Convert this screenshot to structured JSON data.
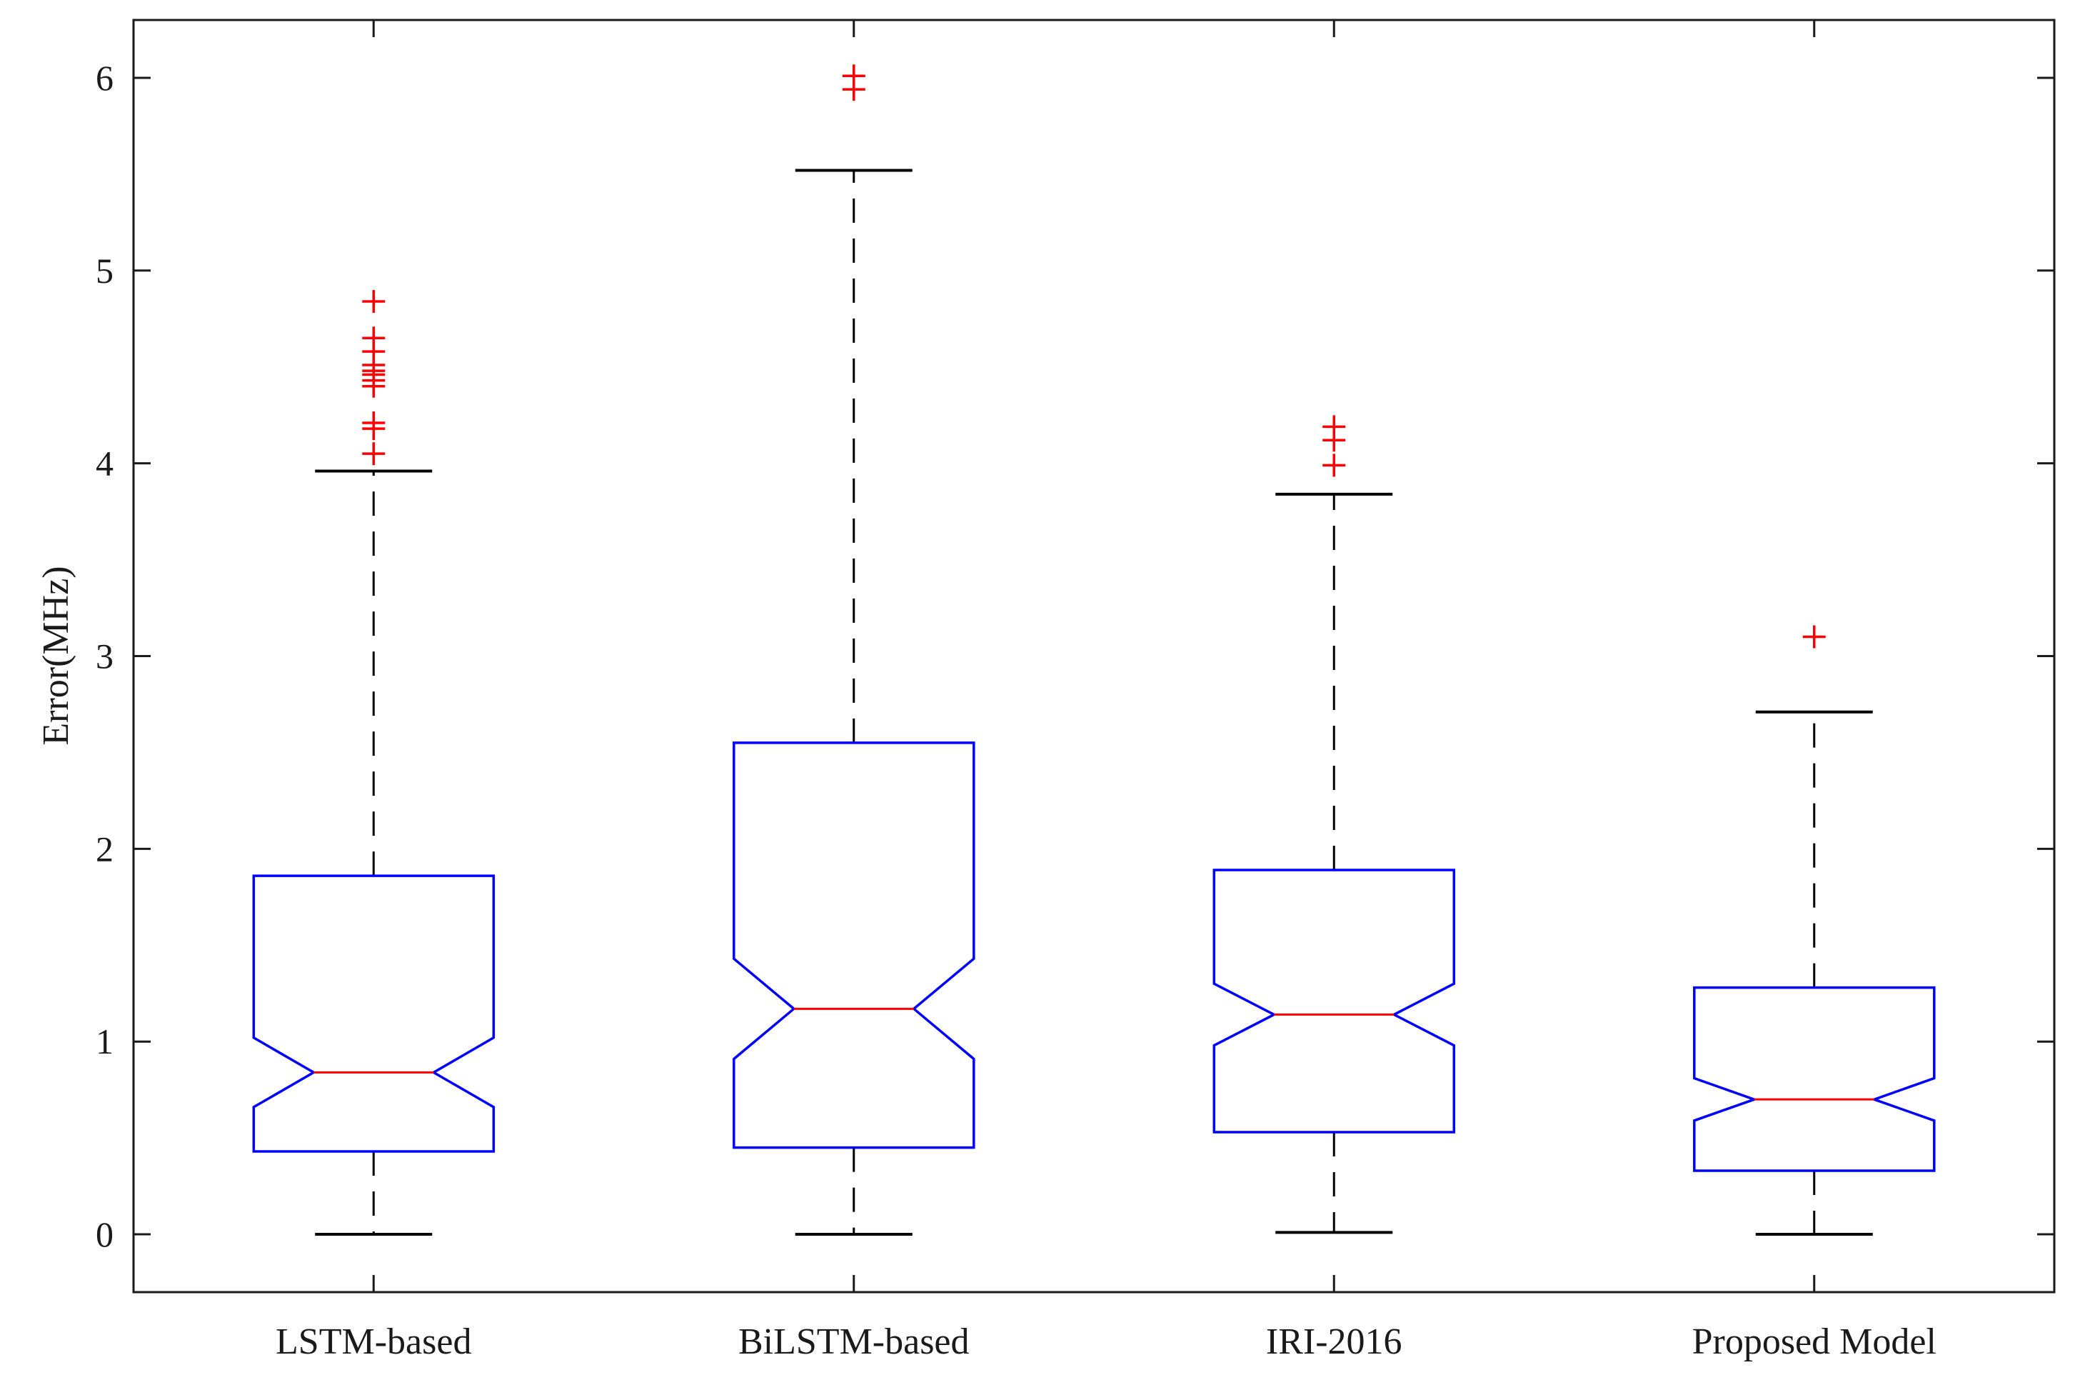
{
  "chart_data": {
    "type": "boxplot",
    "notched": true,
    "ylabel": "Error(MHz)",
    "xlabel": "",
    "title": "",
    "ylim": [
      -0.3,
      6.3
    ],
    "yticks": [
      0,
      1,
      2,
      3,
      4,
      5,
      6
    ],
    "grid": false,
    "categories": [
      "LSTM-based",
      "BiLSTM-based",
      "IRI-2016",
      "Proposed Model"
    ],
    "boxes": [
      {
        "category": "LSTM-based",
        "whisker_low": 0.0,
        "q1": 0.43,
        "median": 0.84,
        "q3": 1.86,
        "whisker_high": 3.96,
        "notch_low": 0.66,
        "notch_high": 1.02,
        "outliers": [
          4.05,
          4.18,
          4.21,
          4.4,
          4.43,
          4.46,
          4.48,
          4.51,
          4.58,
          4.65,
          4.84
        ]
      },
      {
        "category": "BiLSTM-based",
        "whisker_low": 0.0,
        "q1": 0.45,
        "median": 1.17,
        "q3": 2.55,
        "whisker_high": 5.52,
        "notch_low": 0.91,
        "notch_high": 1.43,
        "outliers": [
          5.94,
          6.01
        ]
      },
      {
        "category": "IRI-2016",
        "whisker_low": 0.01,
        "q1": 0.53,
        "median": 1.14,
        "q3": 1.89,
        "whisker_high": 3.84,
        "notch_low": 0.98,
        "notch_high": 1.3,
        "outliers": [
          3.99,
          4.12,
          4.19
        ]
      },
      {
        "category": "Proposed Model",
        "whisker_low": 0.0,
        "q1": 0.33,
        "median": 0.7,
        "q3": 1.28,
        "whisker_high": 2.71,
        "notch_low": 0.59,
        "notch_high": 0.81,
        "outliers": [
          3.1
        ]
      }
    ],
    "colors": {
      "box": "#0000ff",
      "median": "#ff0000",
      "outlier": "#ff0000",
      "whisker": "#000000",
      "axis": "#1a1a1a"
    }
  }
}
